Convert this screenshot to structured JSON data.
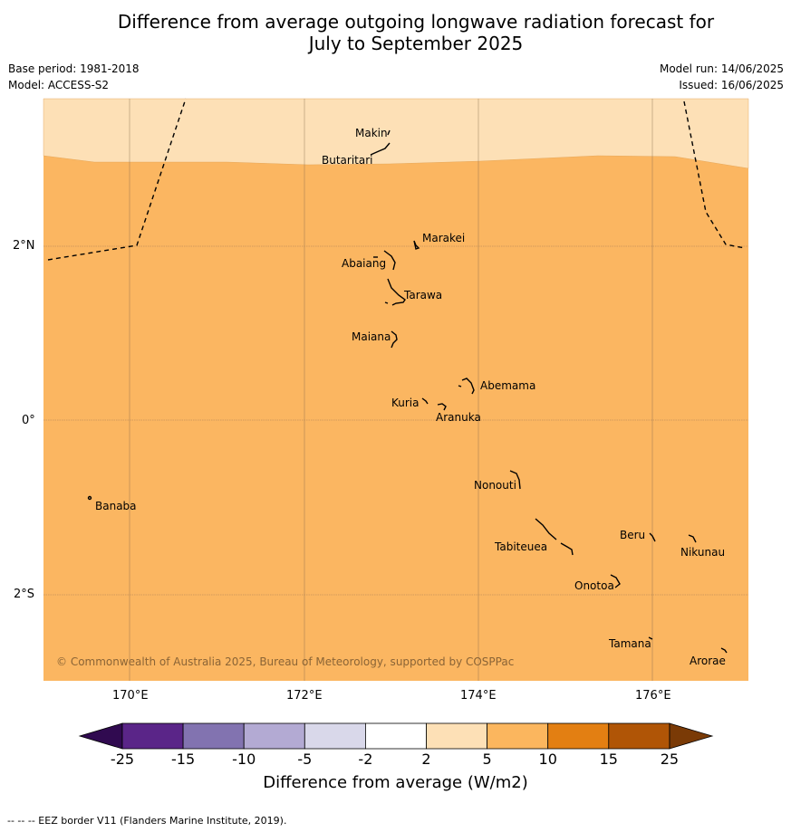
{
  "title_line1": "Difference from average outgoing longwave radiation forecast for",
  "title_line2": "July to September 2025",
  "meta_left": [
    "Base period: 1981-2018",
    "Model: ACCESS-S2"
  ],
  "meta_right": [
    "Model run: 14/06/2025",
    "Issued: 16/06/2025"
  ],
  "copyright": "© Commonwealth of Australia 2025, Bureau of Meteorology, supported by COSPPac",
  "footer": "-- -- -- EEZ border V11 (Flanders Marine Institute, 2019).",
  "lon_ticks": [
    "170°E",
    "172°E",
    "174°E",
    "176°E"
  ],
  "lat_ticks": [
    "2°N",
    "0°",
    "2°S"
  ],
  "colorbar": {
    "title": "Difference from average (W/m2)",
    "labels": [
      "-25",
      "-15",
      "-10",
      "-5",
      "-2",
      "2",
      "5",
      "10",
      "15",
      "25"
    ],
    "colors": [
      "#5a2588",
      "#8273b0",
      "#b3aad3",
      "#d9d8ea",
      "#ffffff",
      "#fde0b6",
      "#fbb65e",
      "#e37f12",
      "#b05506"
    ],
    "low_extend_color": "#300a50",
    "high_extend_color": "#7a3a06"
  },
  "map_colors": {
    "main_fill": "#fbb661",
    "north_fill": "#fde0b6"
  },
  "islands": [
    {
      "name": "Makin"
    },
    {
      "name": "Butaritari"
    },
    {
      "name": "Marakei"
    },
    {
      "name": "Abaiang"
    },
    {
      "name": "Tarawa"
    },
    {
      "name": "Maiana"
    },
    {
      "name": "Abemama"
    },
    {
      "name": "Kuria"
    },
    {
      "name": "Aranuka"
    },
    {
      "name": "Banaba"
    },
    {
      "name": "Nonouti"
    },
    {
      "name": "Tabiteuea"
    },
    {
      "name": "Beru"
    },
    {
      "name": "Nikunau"
    },
    {
      "name": "Onotoa"
    },
    {
      "name": "Tamana"
    },
    {
      "name": "Arorae"
    }
  ]
}
